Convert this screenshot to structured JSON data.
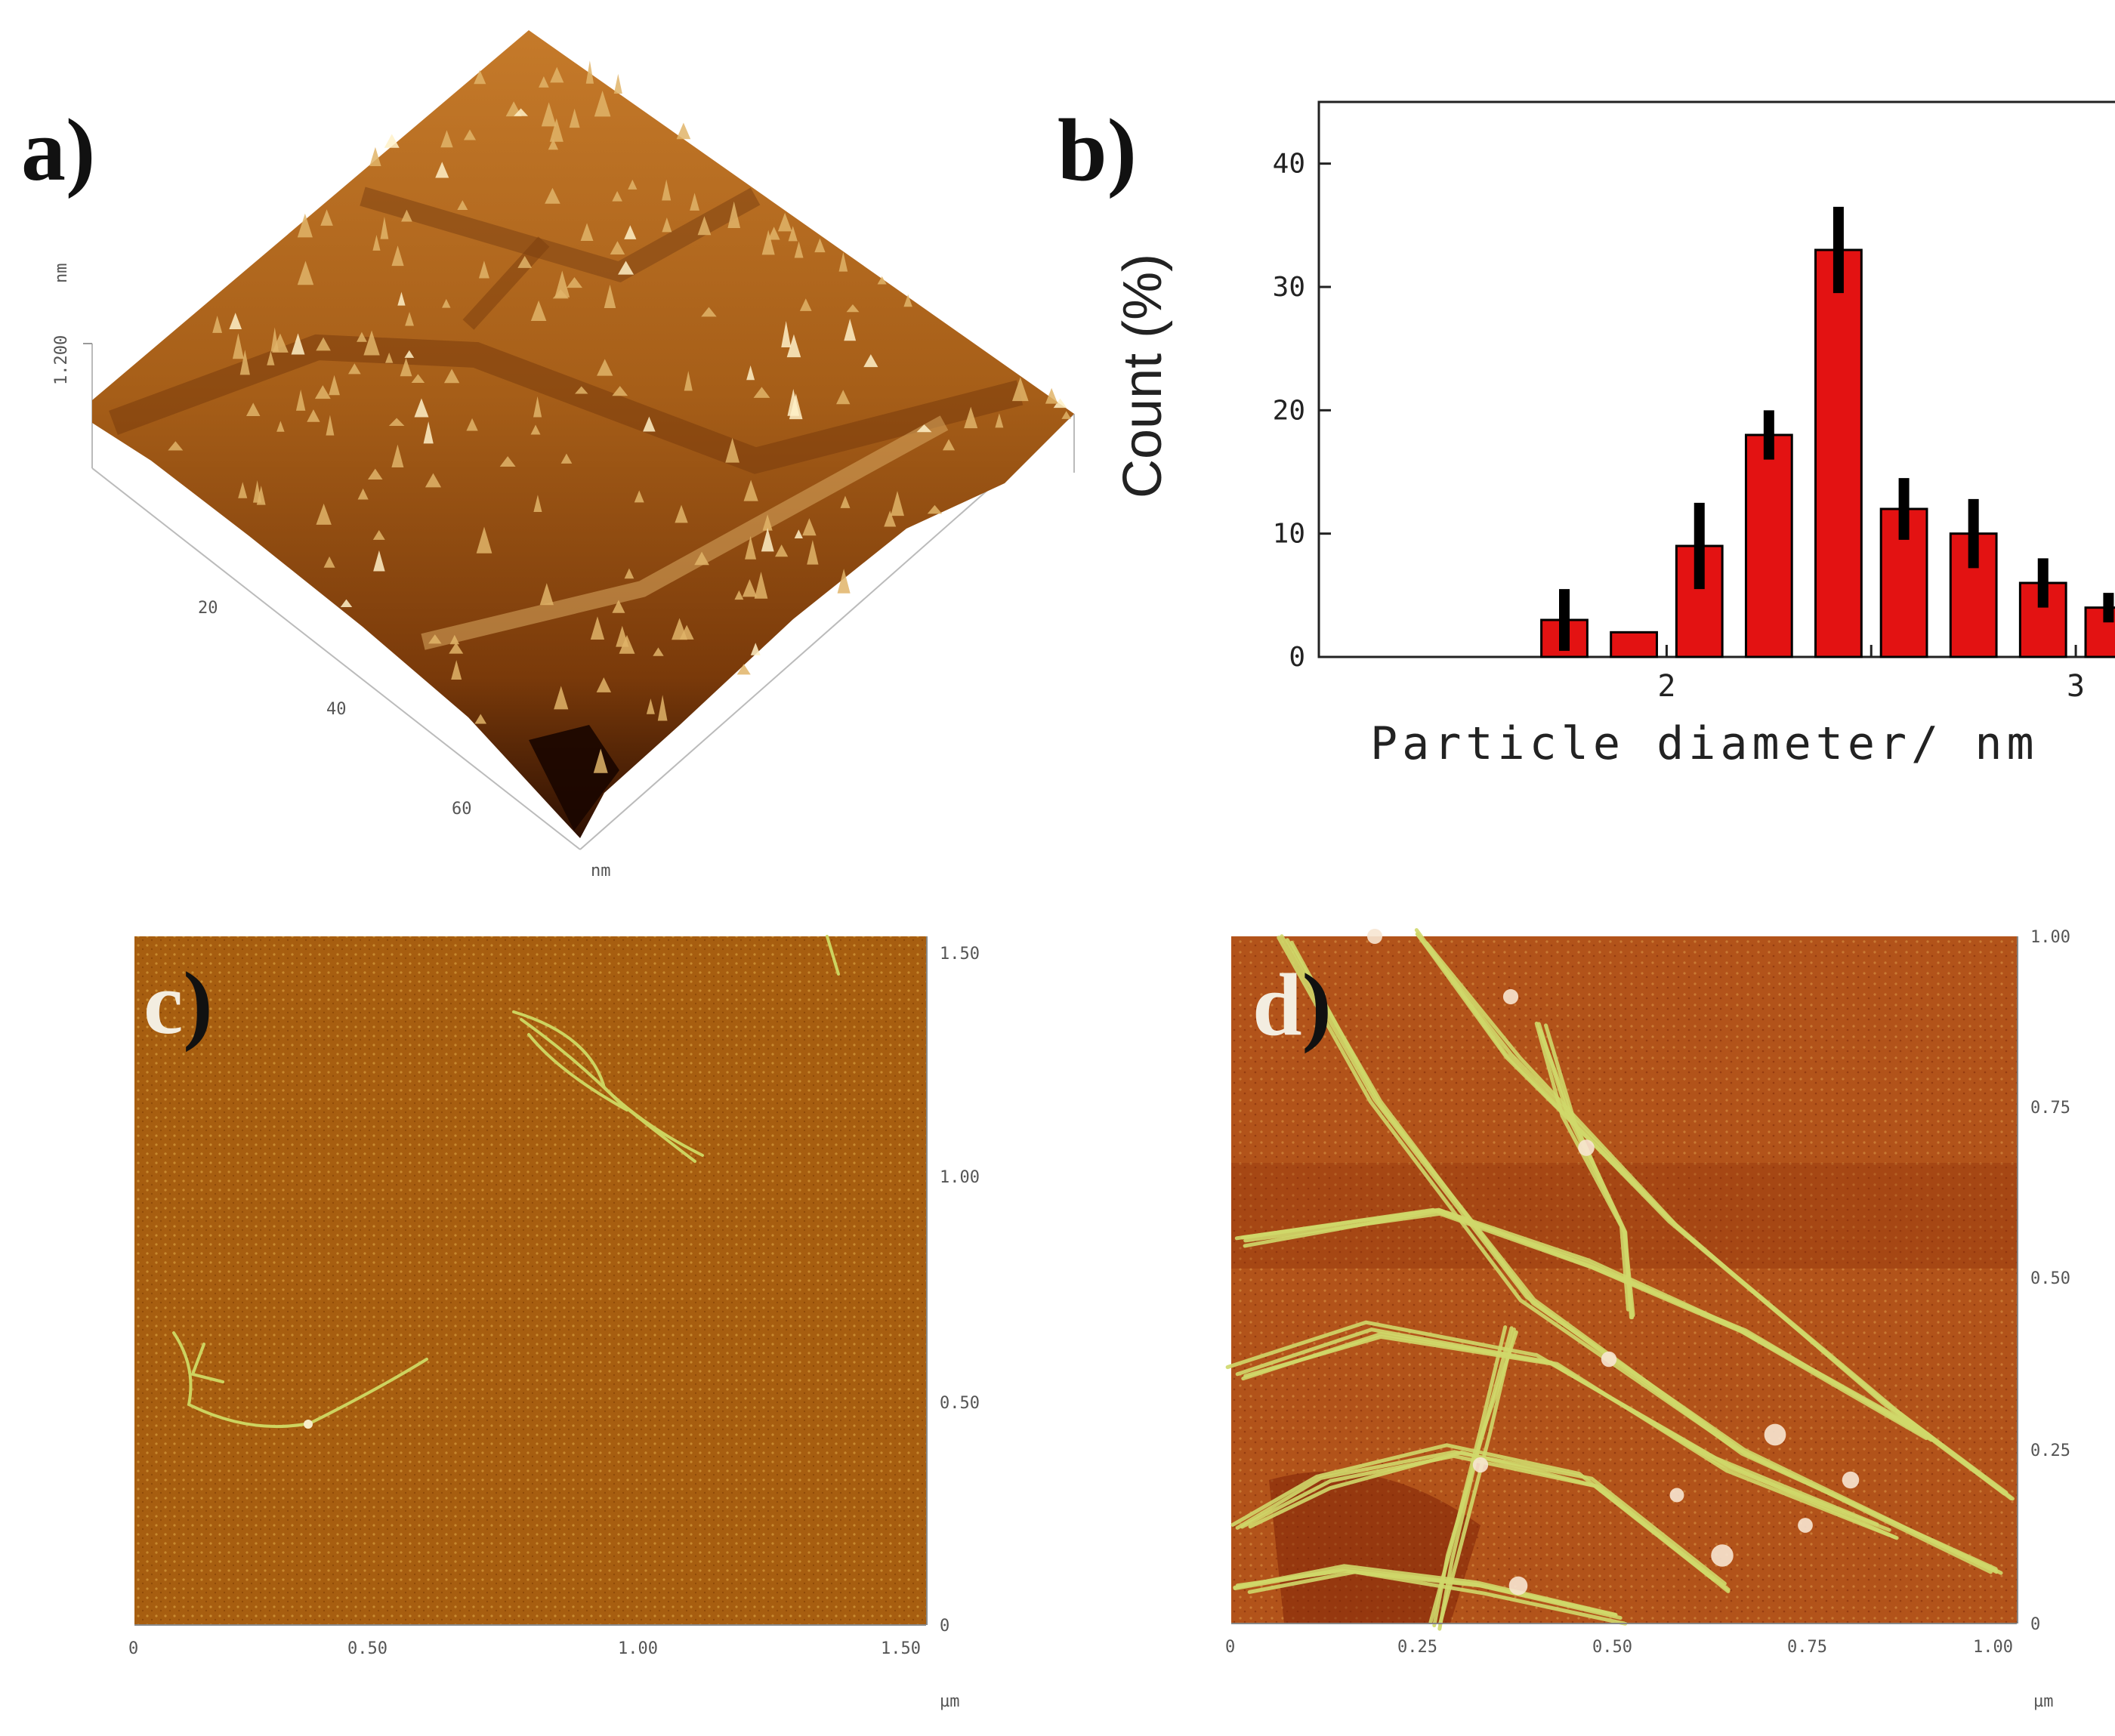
{
  "panels": {
    "a": {
      "label": "a)",
      "z_axis": {
        "tick": "1.200",
        "unit": "nm"
      },
      "xy_axis": {
        "ticks": [
          "20",
          "40",
          "60"
        ],
        "unit": "nm"
      }
    },
    "b": {
      "label": "b)"
    },
    "c": {
      "label": "c",
      "label_paren": ")",
      "x_ticks": [
        "0",
        "0.50",
        "1.00",
        "1.50"
      ],
      "y_ticks": [
        "0",
        "0.50",
        "1.00",
        "1.50"
      ],
      "unit": "µm"
    },
    "d": {
      "label": "d",
      "label_paren": ")",
      "x_ticks": [
        "0",
        "0.25",
        "0.50",
        "0.75",
        "1.00"
      ],
      "y_ticks": [
        "0",
        "0.25",
        "0.50",
        "0.75",
        "1.00"
      ],
      "unit": "µm"
    }
  },
  "chart_data": {
    "type": "bar",
    "x": [
      1.75,
      1.92,
      2.08,
      2.25,
      2.42,
      2.58,
      2.75,
      2.92,
      3.08
    ],
    "values": [
      3,
      2,
      9,
      18,
      33,
      12,
      10,
      6,
      4
    ],
    "errors": [
      2.5,
      0,
      3.5,
      2,
      3.5,
      2.5,
      2.8,
      2,
      1.2
    ],
    "xlabel": "Particle diameter/ nm",
    "ylabel": "Count (%)",
    "x_ticks": [
      "2",
      "3"
    ],
    "y_ticks": [
      "0",
      "10",
      "20",
      "30",
      "40"
    ],
    "xlim": [
      1.15,
      3.55
    ],
    "ylim": [
      0,
      45
    ],
    "bar_color": "#e31212",
    "error_color": "#000000"
  },
  "colors": {
    "afm_base": "#a65a12",
    "afm_dark": "#5a2305",
    "afm_light": "#f4dfa3",
    "fibril": "#cdd460"
  }
}
